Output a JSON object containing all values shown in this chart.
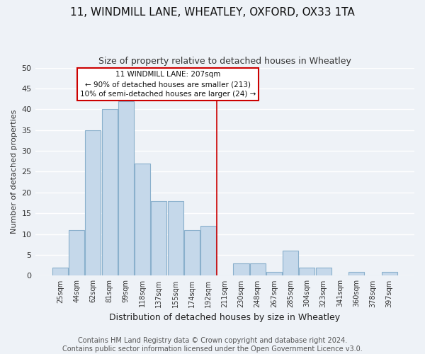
{
  "title": "11, WINDMILL LANE, WHEATLEY, OXFORD, OX33 1TA",
  "subtitle": "Size of property relative to detached houses in Wheatley",
  "xlabel": "Distribution of detached houses by size in Wheatley",
  "ylabel": "Number of detached properties",
  "bar_labels": [
    "25sqm",
    "44sqm",
    "62sqm",
    "81sqm",
    "99sqm",
    "118sqm",
    "137sqm",
    "155sqm",
    "174sqm",
    "192sqm",
    "211sqm",
    "230sqm",
    "248sqm",
    "267sqm",
    "285sqm",
    "304sqm",
    "323sqm",
    "341sqm",
    "360sqm",
    "378sqm",
    "397sqm"
  ],
  "bar_values": [
    2,
    11,
    35,
    40,
    42,
    27,
    18,
    18,
    11,
    12,
    0,
    3,
    3,
    1,
    6,
    2,
    2,
    0,
    1,
    0,
    1
  ],
  "bar_color": "#c5d8ea",
  "bar_edge_color": "#8ab0cc",
  "ylim": [
    0,
    50
  ],
  "vline_x": 9.5,
  "vline_color": "#cc0000",
  "annotation_title": "11 WINDMILL LANE: 207sqm",
  "annotation_line1": "← 90% of detached houses are smaller (213)",
  "annotation_line2": "10% of semi-detached houses are larger (24) →",
  "annotation_box_color": "#ffffff",
  "annotation_box_edge": "#cc0000",
  "footer1": "Contains HM Land Registry data © Crown copyright and database right 2024.",
  "footer2": "Contains public sector information licensed under the Open Government Licence v3.0.",
  "background_color": "#eef2f7",
  "plot_bg_color": "#eef2f7",
  "grid_color": "#ffffff",
  "title_fontsize": 11,
  "subtitle_fontsize": 9,
  "footer_fontsize": 7
}
